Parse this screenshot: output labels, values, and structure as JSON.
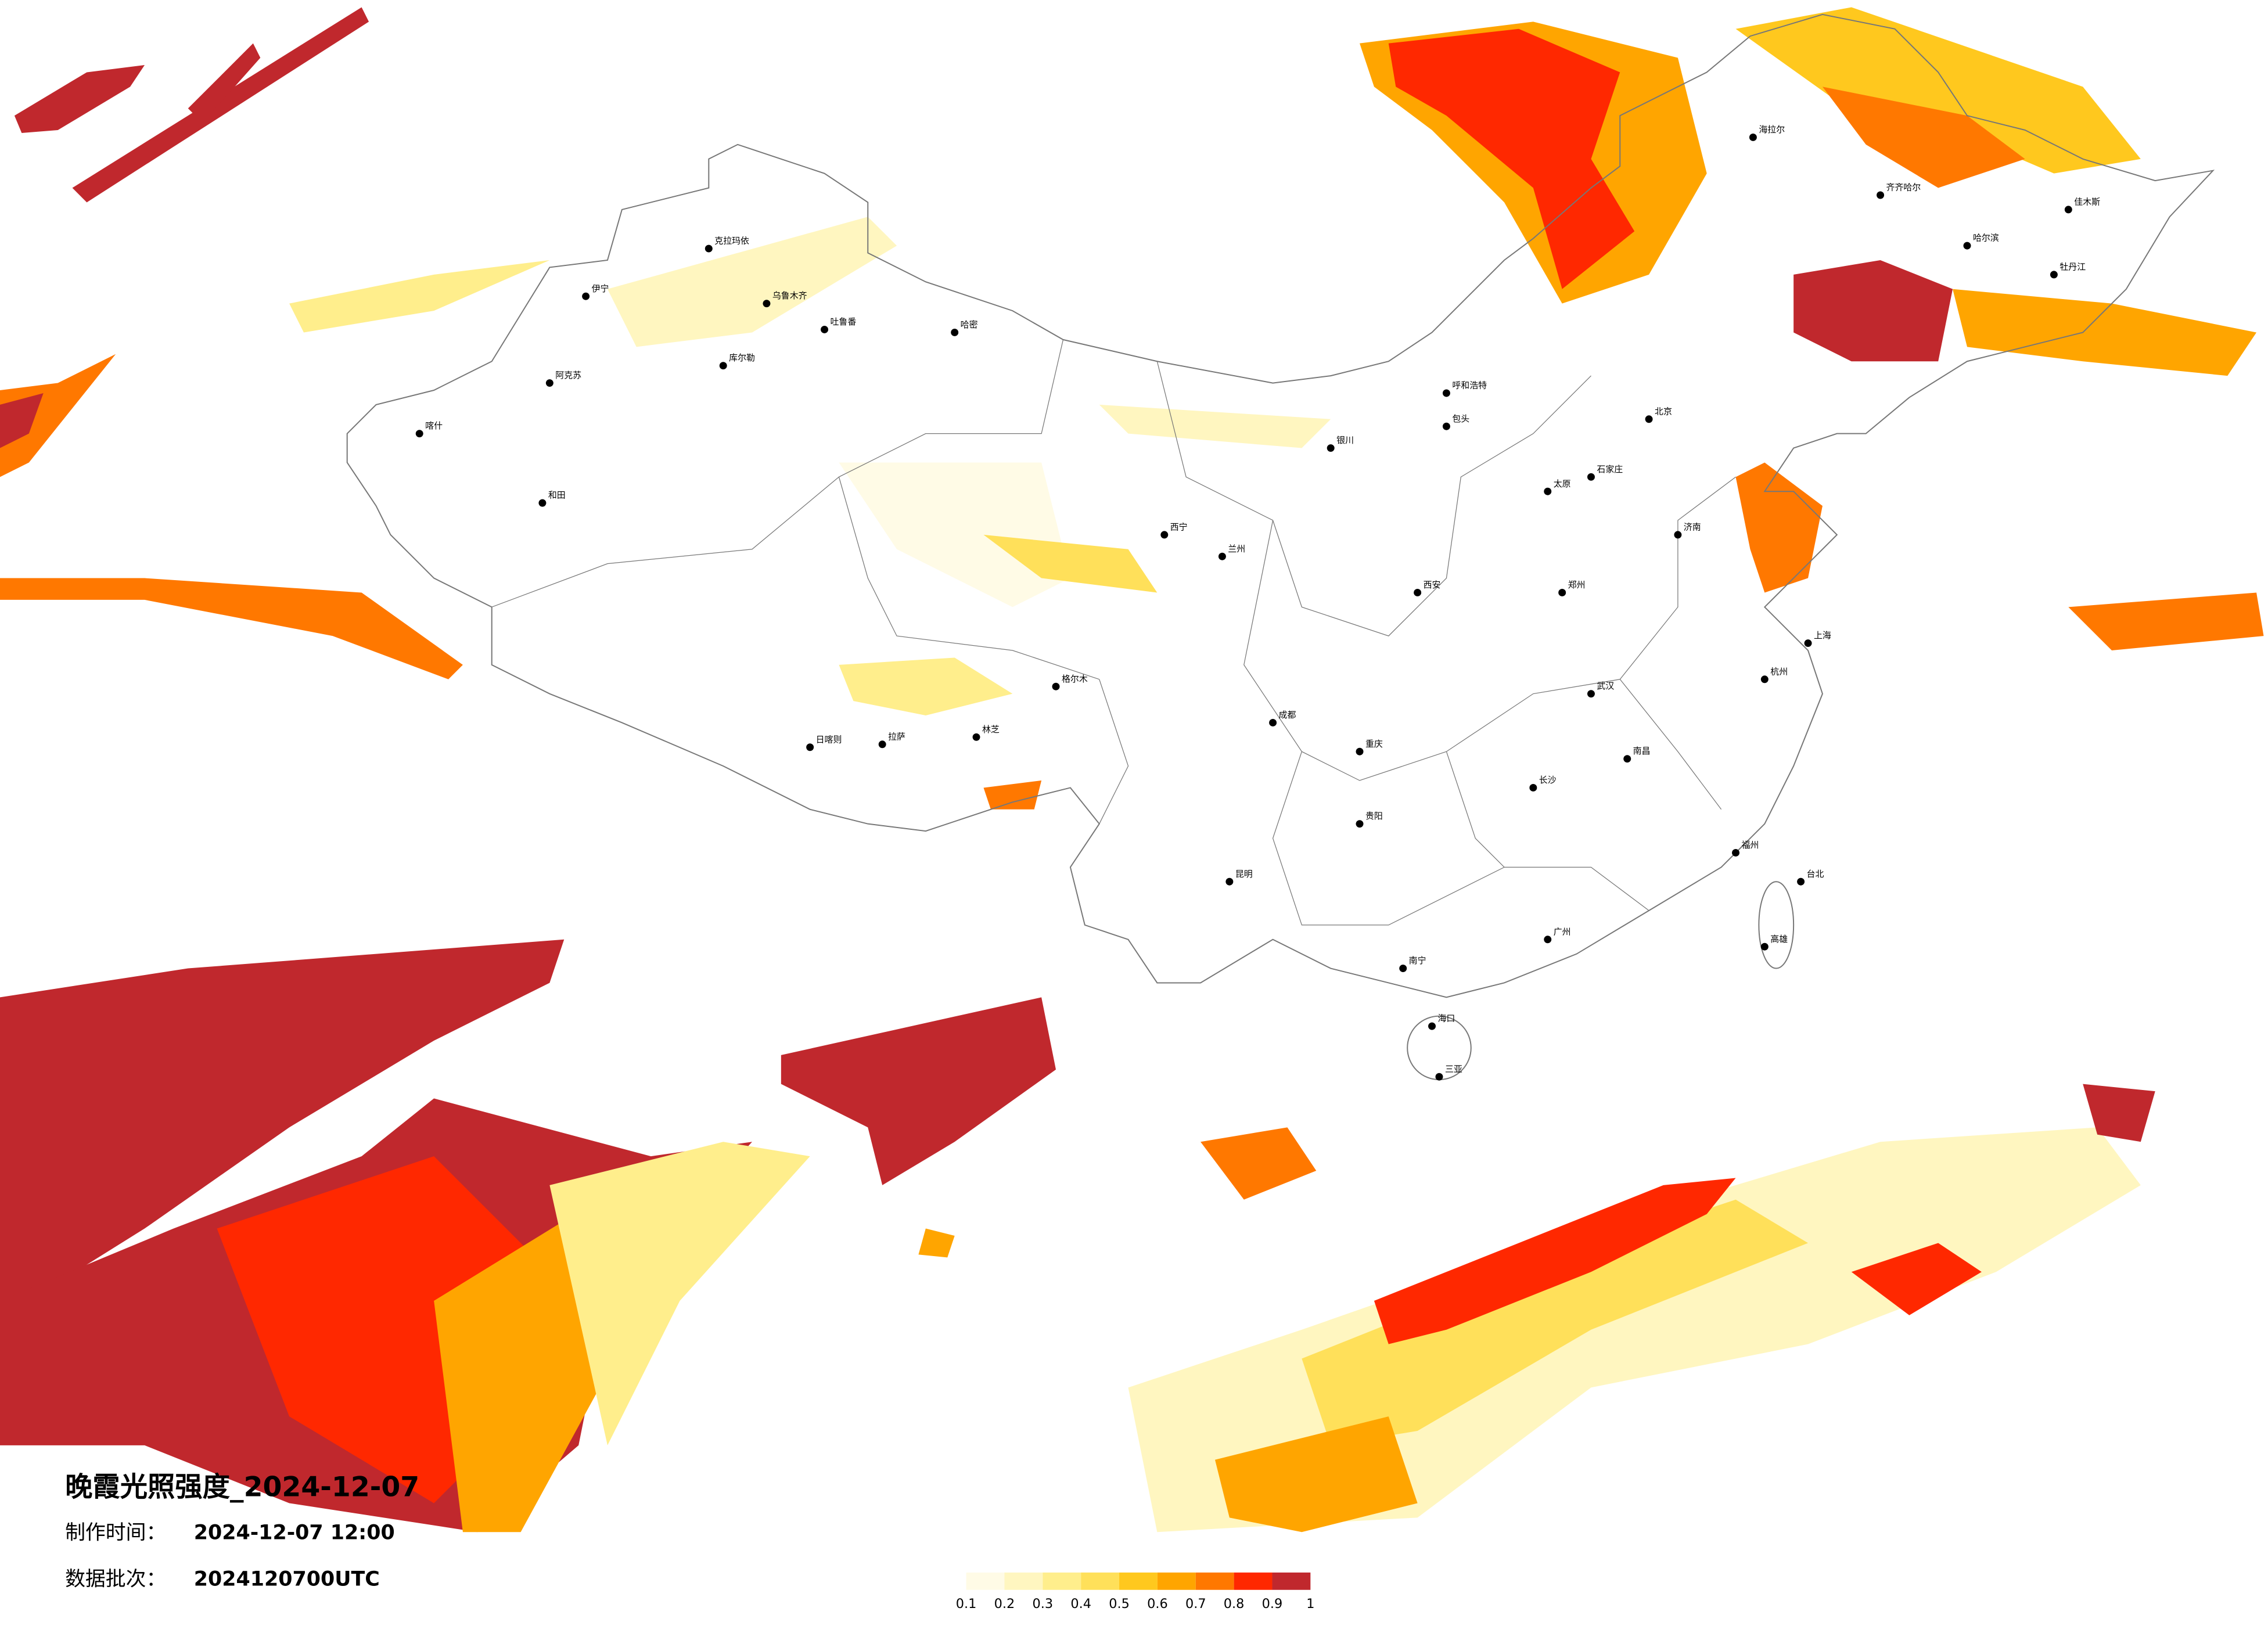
{
  "title": "晚霞光照强度_2024-12-07",
  "info": [
    {
      "label": "制作时间：",
      "value": "2024-12-07 12:00"
    },
    {
      "label": "数据批次：",
      "value": "2024120700UTC"
    }
  ],
  "legend": {
    "colors": [
      "#fffbe6",
      "#fff6c0",
      "#ffee8c",
      "#ffe05a",
      "#ffc81e",
      "#ffa500",
      "#ff7800",
      "#ff2800",
      "#c0282d"
    ],
    "ticks": [
      0.1,
      0.2,
      0.3,
      0.4,
      0.5,
      0.6,
      0.7,
      0.8,
      0.9,
      1
    ]
  },
  "cities": [
    "海拉尔",
    "齐齐哈尔",
    "佳木斯",
    "牡丹江",
    "哈尔滨",
    "乌鲁木齐",
    "克拉玛依",
    "伊宁",
    "阿克苏",
    "和田",
    "喀什",
    "哈密",
    "吐鲁番",
    "库尔勒",
    "格尔木",
    "拉萨",
    "日喀则",
    "林芝",
    "西宁",
    "兰州",
    "银川",
    "呼和浩特",
    "包头",
    "太原",
    "石家庄",
    "北京",
    "济南",
    "郑州",
    "西安",
    "成都",
    "重庆",
    "武汉",
    "长沙",
    "南昌",
    "杭州",
    "上海",
    "福州",
    "广州",
    "南宁",
    "昆明",
    "贵阳",
    "海口",
    "三亚",
    "台北",
    "高雄"
  ]
}
